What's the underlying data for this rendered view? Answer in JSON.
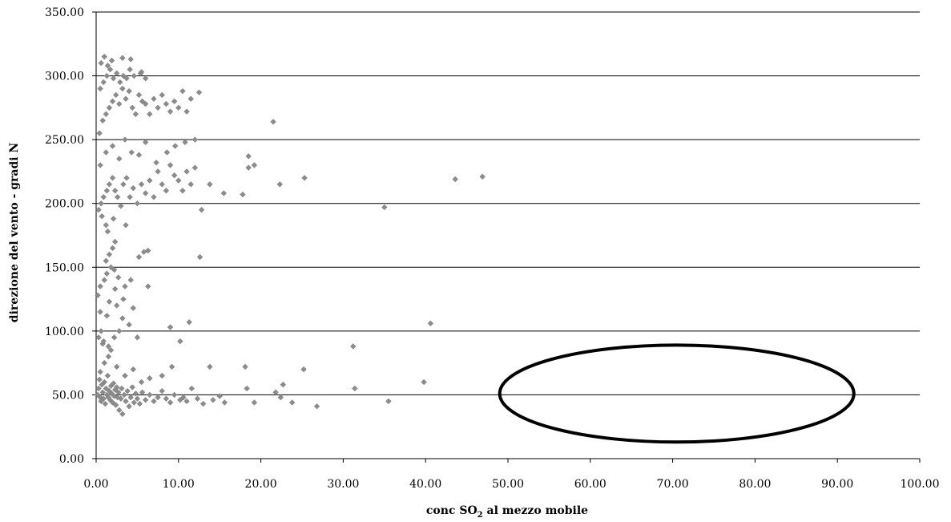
{
  "chart_data": {
    "type": "scatter",
    "title": "",
    "xlabel": {
      "prefix": "conc SO",
      "subscript": "2",
      "suffix": " al mezzo mobile"
    },
    "ylabel": "direzione del vento - gradi N",
    "xlim": [
      0,
      100
    ],
    "ylim": [
      0,
      350
    ],
    "x_ticks": [
      "0.00",
      "10.00",
      "20.00",
      "30.00",
      "40.00",
      "50.00",
      "60.00",
      "70.00",
      "80.00",
      "90.00",
      "100.00"
    ],
    "y_ticks": [
      "0.00",
      "50.00",
      "100.00",
      "150.00",
      "200.00",
      "250.00",
      "300.00",
      "350.00"
    ],
    "grid": "horizontal",
    "legend": "none",
    "marker_color": "#8c8c8c",
    "annotation": {
      "shape": "ellipse",
      "center": [
        70.5,
        51
      ],
      "rx": 21.5,
      "ry": 38
    },
    "series": [
      {
        "points": [
          [
            0.2,
            50
          ],
          [
            0.3,
            55
          ],
          [
            0.4,
            62
          ],
          [
            0.5,
            48
          ],
          [
            0.6,
            45
          ],
          [
            0.7,
            58
          ],
          [
            0.8,
            52
          ],
          [
            0.9,
            47
          ],
          [
            1.0,
            60
          ],
          [
            1.1,
            43
          ],
          [
            1.2,
            55
          ],
          [
            1.3,
            50
          ],
          [
            1.4,
            65
          ],
          [
            1.5,
            48
          ],
          [
            1.6,
            53
          ],
          [
            1.7,
            46
          ],
          [
            1.8,
            57
          ],
          [
            1.9,
            51
          ],
          [
            2.0,
            44
          ],
          [
            2.1,
            59
          ],
          [
            2.2,
            49
          ],
          [
            2.3,
            54
          ],
          [
            2.4,
            42
          ],
          [
            2.5,
            56
          ],
          [
            2.6,
            48
          ],
          [
            2.7,
            52
          ],
          [
            2.8,
            38
          ],
          [
            3.0,
            47
          ],
          [
            3.1,
            55
          ],
          [
            3.2,
            35
          ],
          [
            3.4,
            50
          ],
          [
            3.6,
            45
          ],
          [
            3.8,
            53
          ],
          [
            4.0,
            41
          ],
          [
            4.2,
            48
          ],
          [
            4.4,
            56
          ],
          [
            4.6,
            44
          ],
          [
            4.8,
            51
          ],
          [
            5.0,
            47
          ],
          [
            5.3,
            43
          ],
          [
            5.6,
            52
          ],
          [
            6.0,
            46
          ],
          [
            6.5,
            50
          ],
          [
            7.0,
            45
          ],
          [
            7.5,
            48
          ],
          [
            8.0,
            53
          ],
          [
            8.5,
            47
          ],
          [
            9.0,
            44
          ],
          [
            9.5,
            50
          ],
          [
            10.2,
            46
          ],
          [
            10.6,
            48
          ],
          [
            11.0,
            45
          ],
          [
            11.6,
            55
          ],
          [
            12.3,
            47
          ],
          [
            13.0,
            43
          ],
          [
            14.2,
            46
          ],
          [
            15.0,
            49
          ],
          [
            15.6,
            44
          ],
          [
            18.3,
            55
          ],
          [
            19.2,
            44
          ],
          [
            21.8,
            52
          ],
          [
            22.4,
            48
          ],
          [
            23.8,
            44
          ],
          [
            26.8,
            41
          ],
          [
            0.5,
            68
          ],
          [
            1.0,
            75
          ],
          [
            1.5,
            80
          ],
          [
            2.5,
            72
          ],
          [
            3.5,
            65
          ],
          [
            4.5,
            70
          ],
          [
            5.5,
            60
          ],
          [
            6.5,
            63
          ],
          [
            8.0,
            65
          ],
          [
            9.2,
            72
          ],
          [
            13.8,
            72
          ],
          [
            18.1,
            72
          ],
          [
            22.7,
            58
          ],
          [
            25.2,
            70
          ],
          [
            31.4,
            55
          ],
          [
            35.5,
            45
          ],
          [
            39.8,
            60
          ],
          [
            31.2,
            88
          ],
          [
            40.6,
            106
          ],
          [
            0.3,
            95
          ],
          [
            0.8,
            90
          ],
          [
            1.5,
            88
          ],
          [
            2.2,
            95
          ],
          [
            2.8,
            100
          ],
          [
            3.2,
            110
          ],
          [
            4.0,
            105
          ],
          [
            0.5,
            115
          ],
          [
            1.3,
            112
          ],
          [
            2.5,
            120
          ],
          [
            3.3,
            125
          ],
          [
            4.5,
            118
          ],
          [
            5.0,
            95
          ],
          [
            0.6,
            100
          ],
          [
            0.9,
            92
          ],
          [
            1.8,
            85
          ],
          [
            9.0,
            103
          ],
          [
            11.3,
            107
          ],
          [
            10.2,
            92
          ],
          [
            0.2,
            128
          ],
          [
            0.5,
            135
          ],
          [
            1.0,
            140
          ],
          [
            1.3,
            145
          ],
          [
            1.8,
            150
          ],
          [
            2.2,
            148
          ],
          [
            2.7,
            142
          ],
          [
            3.5,
            135
          ],
          [
            4.2,
            140
          ],
          [
            6.3,
            135
          ],
          [
            1.2,
            155
          ],
          [
            1.6,
            160
          ],
          [
            2.0,
            165
          ],
          [
            2.3,
            170
          ],
          [
            5.2,
            158
          ],
          [
            5.8,
            162
          ],
          [
            6.3,
            163
          ],
          [
            12.6,
            158
          ],
          [
            0.3,
            195
          ],
          [
            0.6,
            200
          ],
          [
            0.9,
            205
          ],
          [
            1.3,
            210
          ],
          [
            1.6,
            215
          ],
          [
            2.0,
            220
          ],
          [
            2.3,
            210
          ],
          [
            2.6,
            205
          ],
          [
            3.0,
            198
          ],
          [
            3.3,
            215
          ],
          [
            3.7,
            220
          ],
          [
            4.1,
            205
          ],
          [
            4.5,
            212
          ],
          [
            5.0,
            200
          ],
          [
            5.5,
            215
          ],
          [
            6.0,
            208
          ],
          [
            6.5,
            218
          ],
          [
            7.0,
            205
          ],
          [
            7.5,
            225
          ],
          [
            8.0,
            215
          ],
          [
            8.5,
            210
          ],
          [
            9.0,
            230
          ],
          [
            9.5,
            222
          ],
          [
            10.0,
            218
          ],
          [
            10.5,
            210
          ],
          [
            11.0,
            225
          ],
          [
            11.5,
            215
          ],
          [
            12.0,
            228
          ],
          [
            12.8,
            195
          ],
          [
            13.8,
            215
          ],
          [
            15.5,
            208
          ],
          [
            17.8,
            207
          ],
          [
            18.5,
            228
          ],
          [
            19.2,
            230
          ],
          [
            22.3,
            215
          ],
          [
            25.3,
            220
          ],
          [
            35.0,
            197
          ],
          [
            43.6,
            219
          ],
          [
            46.9,
            221
          ],
          [
            0.5,
            230
          ],
          [
            1.2,
            240
          ],
          [
            2.0,
            245
          ],
          [
            2.8,
            235
          ],
          [
            3.5,
            250
          ],
          [
            4.3,
            240
          ],
          [
            5.2,
            238
          ],
          [
            6.0,
            248
          ],
          [
            7.3,
            232
          ],
          [
            8.6,
            240
          ],
          [
            9.6,
            245
          ],
          [
            10.8,
            248
          ],
          [
            12.0,
            250
          ],
          [
            18.5,
            237
          ],
          [
            21.5,
            264
          ],
          [
            0.4,
            255
          ],
          [
            0.8,
            265
          ],
          [
            1.2,
            270
          ],
          [
            1.6,
            275
          ],
          [
            2.0,
            280
          ],
          [
            2.4,
            285
          ],
          [
            2.8,
            278
          ],
          [
            3.2,
            290
          ],
          [
            3.6,
            282
          ],
          [
            4.0,
            288
          ],
          [
            4.4,
            275
          ],
          [
            4.8,
            270
          ],
          [
            5.2,
            285
          ],
          [
            5.6,
            280
          ],
          [
            6.0,
            278
          ],
          [
            6.5,
            270
          ],
          [
            7.0,
            282
          ],
          [
            7.5,
            275
          ],
          [
            8.0,
            285
          ],
          [
            8.5,
            278
          ],
          [
            9.0,
            272
          ],
          [
            9.5,
            280
          ],
          [
            10.0,
            275
          ],
          [
            10.5,
            288
          ],
          [
            11.0,
            272
          ],
          [
            11.5,
            282
          ],
          [
            12.5,
            287
          ],
          [
            0.5,
            290
          ],
          [
            0.9,
            295
          ],
          [
            1.3,
            300
          ],
          [
            1.7,
            305
          ],
          [
            2.1,
            298
          ],
          [
            2.5,
            302
          ],
          [
            2.9,
            295
          ],
          [
            3.3,
            300
          ],
          [
            3.7,
            298
          ],
          [
            4.1,
            305
          ],
          [
            4.6,
            300
          ],
          [
            5.4,
            302
          ],
          [
            6.0,
            298
          ],
          [
            0.6,
            310
          ],
          [
            1.0,
            315
          ],
          [
            1.4,
            308
          ],
          [
            1.9,
            312
          ],
          [
            3.2,
            314
          ],
          [
            4.2,
            313
          ],
          [
            5.5,
            303
          ],
          [
            1.6,
            123
          ],
          [
            2.3,
            133
          ],
          [
            1.2,
            183
          ],
          [
            2.1,
            188
          ],
          [
            3.6,
            183
          ],
          [
            0.7,
            190
          ],
          [
            1.4,
            178
          ]
        ]
      }
    ]
  }
}
